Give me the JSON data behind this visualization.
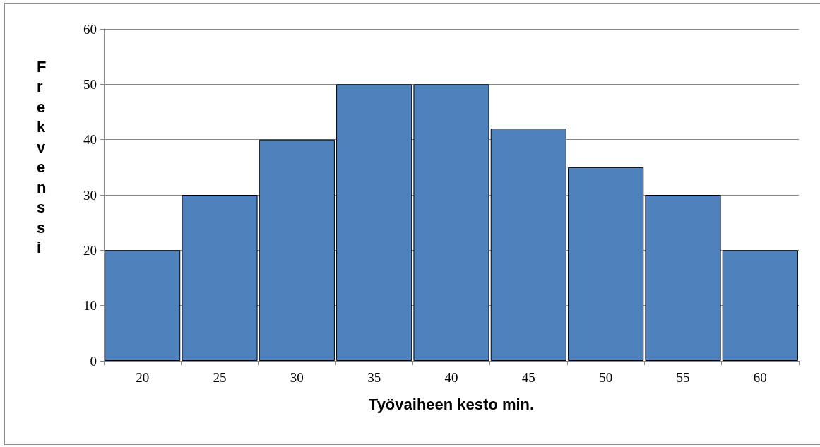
{
  "chart_data": {
    "type": "bar",
    "xlabel": "Työvaiheen kesto min.",
    "ylabel": "Frekvenssi",
    "categories": [
      "20",
      "25",
      "30",
      "35",
      "40",
      "45",
      "50",
      "55",
      "60"
    ],
    "values": [
      20,
      30,
      40,
      50,
      50,
      42,
      35,
      30,
      20
    ],
    "color": "#4f81bd",
    "ylim": [
      0,
      60
    ],
    "yticks": [
      0,
      10,
      20,
      30,
      40,
      50,
      60
    ],
    "grid": "y"
  }
}
